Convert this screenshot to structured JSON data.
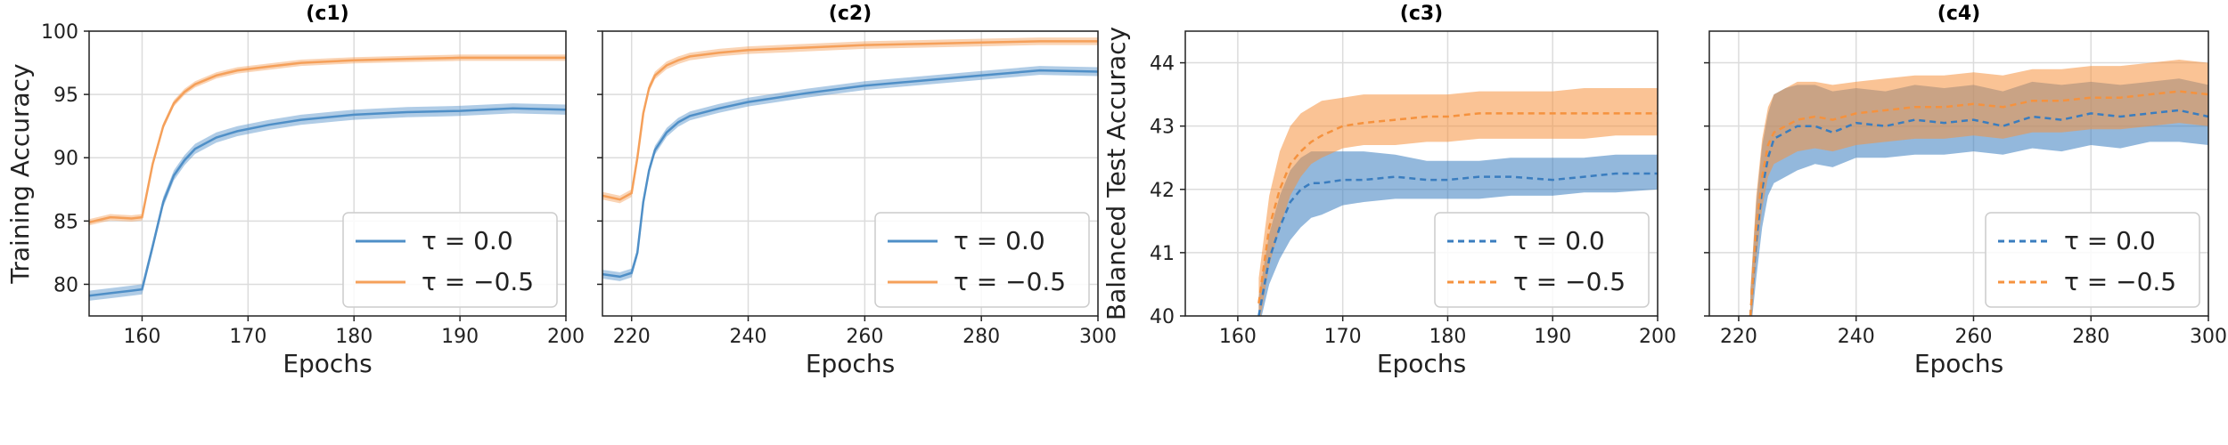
{
  "chart_data": [
    {
      "type": "line",
      "title": "(c1)",
      "xlabel": "Epochs",
      "ylabel": "Training Accuracy",
      "xlim": [
        155,
        200
      ],
      "ylim": [
        77.5,
        100
      ],
      "xticks": [
        160,
        170,
        180,
        190,
        200
      ],
      "yticks": [
        80,
        85,
        90,
        95,
        100
      ],
      "grid": true,
      "legend_position": "bottom-right",
      "line_style": "solid",
      "series": [
        {
          "name": "τ = 0.0",
          "color": "#4f8fc7",
          "x": [
            155,
            157,
            159,
            160,
            161,
            162,
            163,
            164,
            165,
            167,
            169,
            172,
            175,
            180,
            185,
            190,
            195,
            200
          ],
          "y": [
            79.1,
            79.3,
            79.5,
            79.6,
            83.0,
            86.5,
            88.6,
            89.8,
            90.7,
            91.6,
            92.1,
            92.6,
            93.0,
            93.4,
            93.6,
            93.7,
            93.9,
            93.8
          ],
          "band": 0.4
        },
        {
          "name": "τ = −0.5",
          "color": "#f5a05a",
          "x": [
            155,
            157,
            159,
            160,
            161,
            162,
            163,
            164,
            165,
            167,
            169,
            172,
            175,
            180,
            185,
            190,
            195,
            200
          ],
          "y": [
            84.9,
            85.3,
            85.2,
            85.3,
            89.5,
            92.5,
            94.3,
            95.2,
            95.8,
            96.5,
            96.9,
            97.2,
            97.5,
            97.7,
            97.8,
            97.9,
            97.9,
            97.9
          ],
          "band": 0.25
        }
      ]
    },
    {
      "type": "line",
      "title": "(c2)",
      "xlabel": "Epochs",
      "ylabel": "",
      "xlim": [
        215,
        300
      ],
      "ylim": [
        77.5,
        100
      ],
      "xticks": [
        220,
        240,
        260,
        280,
        300
      ],
      "yticks": [
        80,
        85,
        90,
        95,
        100
      ],
      "grid": true,
      "legend_position": "bottom-right",
      "line_style": "solid",
      "series": [
        {
          "name": "τ = 0.0",
          "color": "#4f8fc7",
          "x": [
            215,
            218,
            220,
            221,
            222,
            223,
            224,
            226,
            228,
            230,
            235,
            240,
            250,
            260,
            270,
            280,
            290,
            300
          ],
          "y": [
            80.8,
            80.6,
            80.9,
            82.5,
            86.5,
            89.0,
            90.6,
            92.0,
            92.8,
            93.3,
            93.9,
            94.4,
            95.1,
            95.7,
            96.1,
            96.5,
            96.9,
            96.8
          ],
          "band": 0.35
        },
        {
          "name": "τ = −0.5",
          "color": "#f5a05a",
          "x": [
            215,
            218,
            220,
            221,
            222,
            223,
            224,
            226,
            228,
            230,
            235,
            240,
            250,
            260,
            270,
            280,
            290,
            300
          ],
          "y": [
            87.0,
            86.7,
            87.2,
            90.0,
            93.5,
            95.5,
            96.5,
            97.3,
            97.7,
            98.0,
            98.3,
            98.5,
            98.7,
            98.9,
            99.0,
            99.1,
            99.2,
            99.2
          ],
          "band": 0.3
        }
      ]
    },
    {
      "type": "line",
      "title": "(c3)",
      "xlabel": "Epochs",
      "ylabel": "Balanced Test Accuracy",
      "xlim": [
        155,
        200
      ],
      "ylim": [
        40,
        44.5
      ],
      "xticks": [
        160,
        170,
        180,
        190,
        200
      ],
      "yticks": [
        40,
        41,
        42,
        43,
        44
      ],
      "grid": true,
      "legend_position": "bottom-right",
      "line_style": "dashed",
      "series": [
        {
          "name": "τ = 0.0",
          "color": "#3a7dbf",
          "x": [
            162,
            163,
            164,
            165,
            166,
            167,
            168,
            170,
            172,
            175,
            178,
            180,
            183,
            186,
            190,
            193,
            196,
            200
          ],
          "y": [
            40.0,
            40.9,
            41.4,
            41.8,
            42.0,
            42.1,
            42.1,
            42.15,
            42.15,
            42.2,
            42.15,
            42.15,
            42.2,
            42.2,
            42.15,
            42.2,
            42.25,
            42.25
          ],
          "band_lo": [
            39.8,
            40.5,
            40.9,
            41.2,
            41.4,
            41.55,
            41.6,
            41.75,
            41.8,
            41.85,
            41.85,
            41.85,
            41.85,
            41.9,
            41.9,
            41.95,
            41.95,
            42.0
          ],
          "band_hi": [
            40.3,
            41.3,
            41.9,
            42.3,
            42.5,
            42.6,
            42.6,
            42.6,
            42.6,
            42.55,
            42.45,
            42.45,
            42.45,
            42.5,
            42.5,
            42.5,
            42.55,
            42.55
          ]
        },
        {
          "name": "τ = −0.5",
          "color": "#f5923e",
          "x": [
            162,
            163,
            164,
            165,
            166,
            167,
            168,
            170,
            172,
            175,
            178,
            180,
            183,
            186,
            190,
            193,
            196,
            200
          ],
          "y": [
            40.2,
            41.4,
            42.0,
            42.4,
            42.6,
            42.75,
            42.85,
            43.0,
            43.05,
            43.1,
            43.15,
            43.15,
            43.2,
            43.2,
            43.2,
            43.2,
            43.2,
            43.2
          ],
          "band_lo": [
            39.8,
            40.8,
            41.4,
            41.9,
            42.2,
            42.4,
            42.5,
            42.65,
            42.7,
            42.7,
            42.75,
            42.75,
            42.8,
            42.8,
            42.8,
            42.8,
            42.85,
            42.85
          ],
          "band_hi": [
            40.6,
            41.9,
            42.6,
            43.0,
            43.2,
            43.3,
            43.4,
            43.45,
            43.5,
            43.5,
            43.5,
            43.5,
            43.55,
            43.55,
            43.55,
            43.6,
            43.6,
            43.6
          ]
        }
      ]
    },
    {
      "type": "line",
      "title": "(c4)",
      "xlabel": "Epochs",
      "ylabel": "",
      "xlim": [
        215,
        300
      ],
      "ylim": [
        40,
        44.5
      ],
      "xticks": [
        220,
        240,
        260,
        280,
        300
      ],
      "yticks": [
        40,
        41,
        42,
        43,
        44
      ],
      "grid": true,
      "legend_position": "bottom-right",
      "line_style": "dashed",
      "series": [
        {
          "name": "τ = 0.0",
          "color": "#3a7dbf",
          "x": [
            222,
            223,
            224,
            225,
            226,
            228,
            230,
            233,
            236,
            240,
            245,
            250,
            255,
            260,
            265,
            270,
            275,
            280,
            285,
            290,
            295,
            300
          ],
          "y": [
            40.0,
            41.2,
            42.0,
            42.5,
            42.8,
            42.9,
            43.0,
            43.0,
            42.9,
            43.05,
            43.0,
            43.1,
            43.05,
            43.1,
            43.0,
            43.15,
            43.1,
            43.2,
            43.15,
            43.2,
            43.25,
            43.15
          ],
          "band_lo": [
            39.7,
            40.6,
            41.4,
            41.9,
            42.1,
            42.2,
            42.3,
            42.4,
            42.35,
            42.5,
            42.5,
            42.55,
            42.55,
            42.6,
            42.55,
            42.65,
            42.6,
            42.7,
            42.65,
            42.75,
            42.75,
            42.7
          ],
          "band_hi": [
            40.4,
            41.8,
            42.7,
            43.2,
            43.5,
            43.6,
            43.65,
            43.65,
            43.55,
            43.6,
            43.55,
            43.65,
            43.6,
            43.65,
            43.55,
            43.7,
            43.65,
            43.7,
            43.65,
            43.7,
            43.75,
            43.65
          ]
        },
        {
          "name": "τ = −0.5",
          "color": "#f5923e",
          "x": [
            222,
            223,
            224,
            225,
            226,
            228,
            230,
            233,
            236,
            240,
            245,
            250,
            255,
            260,
            265,
            270,
            275,
            280,
            285,
            290,
            295,
            300
          ],
          "y": [
            40.0,
            41.4,
            42.2,
            42.7,
            42.9,
            43.0,
            43.1,
            43.15,
            43.1,
            43.2,
            43.25,
            43.3,
            43.3,
            43.35,
            43.3,
            43.4,
            43.4,
            43.45,
            43.45,
            43.5,
            43.55,
            43.5
          ],
          "band_lo": [
            39.7,
            40.9,
            41.7,
            42.2,
            42.4,
            42.5,
            42.6,
            42.65,
            42.6,
            42.7,
            42.75,
            42.8,
            42.8,
            42.85,
            42.8,
            42.9,
            42.9,
            42.95,
            42.95,
            43.0,
            43.05,
            43.0
          ],
          "band_hi": [
            40.4,
            41.9,
            42.8,
            43.3,
            43.5,
            43.6,
            43.7,
            43.7,
            43.65,
            43.7,
            43.75,
            43.8,
            43.8,
            43.85,
            43.8,
            43.9,
            43.9,
            43.95,
            43.95,
            44.0,
            44.05,
            44.0
          ]
        }
      ]
    }
  ]
}
